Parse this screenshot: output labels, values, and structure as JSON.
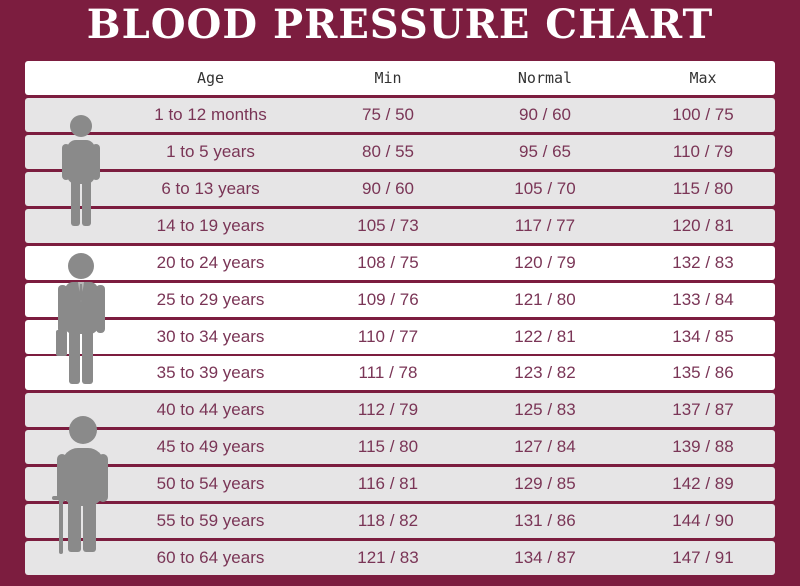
{
  "title": "BLOOD PRESSURE CHART",
  "header": {
    "age": "Age",
    "min": "Min",
    "normal": "Normal",
    "max": "Max"
  },
  "rows": [
    {
      "age": "1 to 12 months",
      "min": "75 / 50",
      "normal": "90 / 60",
      "max": "100 / 75"
    },
    {
      "age": "1 to 5 years",
      "min": "80 / 55",
      "normal": "95 / 65",
      "max": "110 / 79"
    },
    {
      "age": "6 to 13 years",
      "min": "90 / 60",
      "normal": "105 / 70",
      "max": "115 / 80"
    },
    {
      "age": "14 to 19 years",
      "min": "105 / 73",
      "normal": "117 / 77",
      "max": "120 / 81"
    },
    {
      "age": "20 to 24 years",
      "min": "108 / 75",
      "normal": "120 / 79",
      "max": "132 / 83"
    },
    {
      "age": "25 to 29 years",
      "min": "109 / 76",
      "normal": "121 / 80",
      "max": "133 / 84"
    },
    {
      "age": "30 to 34 years",
      "min": "110 / 77",
      "normal": "122 / 81",
      "max": "134 / 85"
    },
    {
      "age": "35 to 39 years",
      "min": "111 / 78",
      "normal": "123 / 82",
      "max": "135 / 86"
    },
    {
      "age": "40 to 44 years",
      "min": "112 / 79",
      "normal": "125 / 83",
      "max": "137 / 87"
    },
    {
      "age": "45 to 49 years",
      "min": "115 / 80",
      "normal": "127 / 84",
      "max": "139 / 88"
    },
    {
      "age": "50 to 54 years",
      "min": "116 / 81",
      "normal": "129 / 85",
      "max": "142 / 89"
    },
    {
      "age": "55 to 59 years",
      "min": "118 / 82",
      "normal": "131 / 86",
      "max": "144 / 90"
    },
    {
      "age": "60 to 64 years",
      "min": "121 / 83",
      "normal": "134 / 87",
      "max": "147 / 91"
    }
  ],
  "colors": {
    "background": "#7c1d3f",
    "row_light": "#ffffff",
    "row_gray": "#e6e5e6",
    "text": "#7a3556",
    "figure": "#8a8a8a"
  },
  "icons": [
    "child-figure-icon",
    "adult-figure-icon",
    "elderly-figure-icon"
  ]
}
